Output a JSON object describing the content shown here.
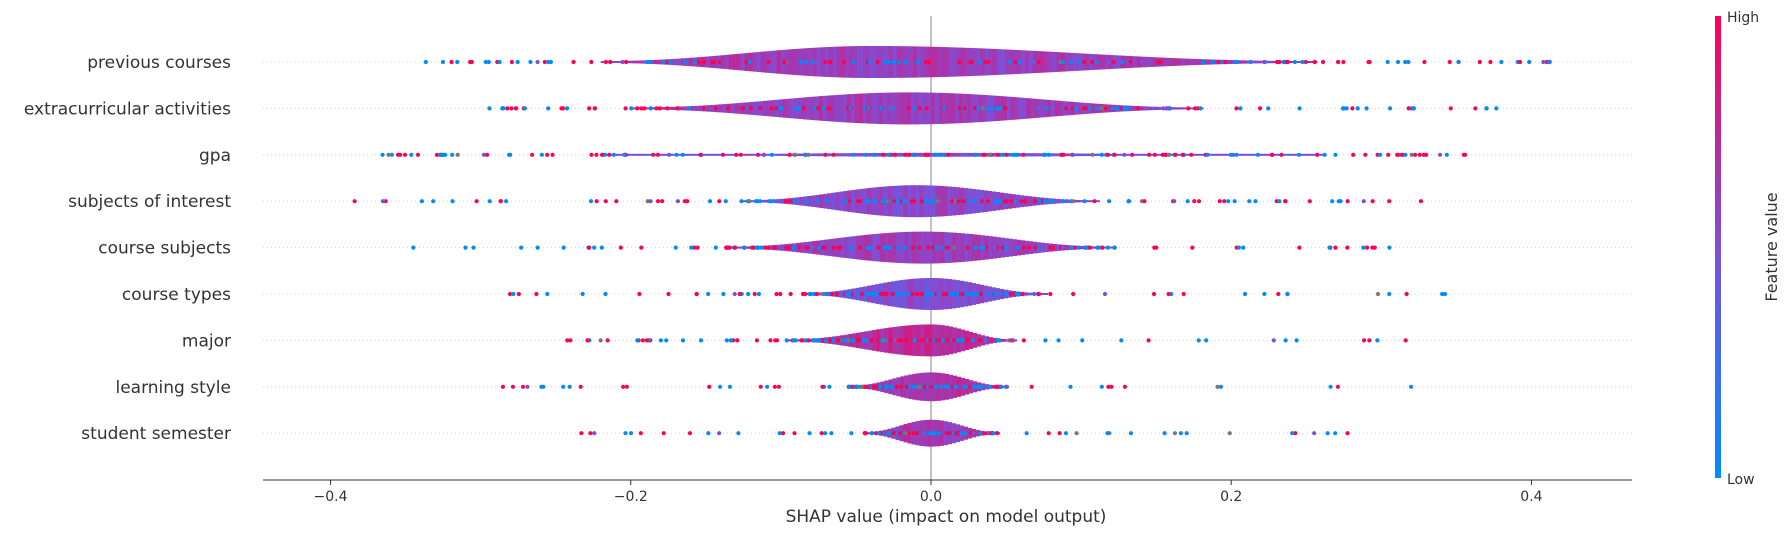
{
  "chart_data": {
    "type": "violin-summary",
    "xlabel": "SHAP value (impact on model output)",
    "xlim": [
      -0.445,
      0.467
    ],
    "xticks": [
      -0.4,
      -0.2,
      0.0,
      0.2,
      0.4
    ],
    "xtick_labels": [
      "−0.4",
      "−0.2",
      "0.0",
      "0.2",
      "0.4"
    ],
    "colorbar": {
      "title": "Feature value",
      "high_label": "High",
      "low_label": "Low",
      "low_color": "#008bfb",
      "high_color": "#ff0052"
    },
    "features": [
      {
        "name": "previous courses",
        "range": [
          -0.35,
          0.425
        ],
        "body": [
          -0.22,
          0.255
        ],
        "peak": -0.04,
        "width": 0.5,
        "tint": 0.62
      },
      {
        "name": "extracurricular activities",
        "range": [
          -0.31,
          0.39
        ],
        "body": [
          -0.2,
          0.18
        ],
        "peak": -0.015,
        "width": 0.5,
        "tint": 0.62
      },
      {
        "name": "gpa",
        "range": [
          -0.375,
          0.36
        ],
        "body": [
          -0.22,
          0.26
        ],
        "peak": 0.0,
        "width": 0.06,
        "tint": 0.5
      },
      {
        "name": "subjects of interest",
        "range": [
          -0.405,
          0.33
        ],
        "body": [
          -0.125,
          0.11
        ],
        "peak": -0.01,
        "width": 0.5,
        "tint": 0.55
      },
      {
        "name": "course subjects",
        "range": [
          -0.345,
          0.31
        ],
        "body": [
          -0.135,
          0.12
        ],
        "peak": -0.005,
        "width": 0.5,
        "tint": 0.6
      },
      {
        "name": "course types",
        "range": [
          -0.285,
          0.36
        ],
        "body": [
          -0.085,
          0.075
        ],
        "peak": 0.0,
        "width": 0.5,
        "tint": 0.5
      },
      {
        "name": "major",
        "range": [
          -0.26,
          0.35
        ],
        "body": [
          -0.095,
          0.055
        ],
        "peak": 0.0,
        "width": 0.5,
        "tint": 0.72
      },
      {
        "name": "learning style",
        "range": [
          -0.29,
          0.33
        ],
        "body": [
          -0.055,
          0.05
        ],
        "peak": 0.0,
        "width": 0.45,
        "tint": 0.66
      },
      {
        "name": "student semester",
        "range": [
          -0.24,
          0.285
        ],
        "body": [
          -0.045,
          0.045
        ],
        "peak": 0.0,
        "width": 0.42,
        "tint": 0.66
      }
    ]
  }
}
